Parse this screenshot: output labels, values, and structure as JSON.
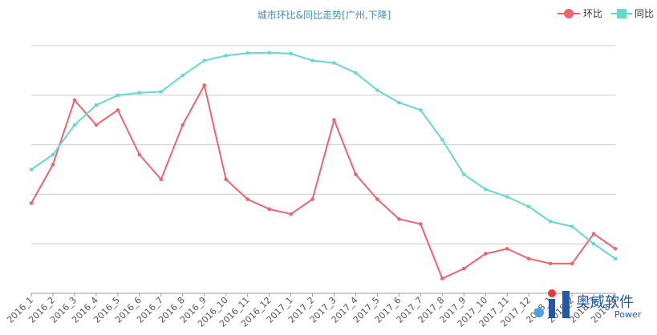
{
  "chart_data": {
    "type": "line",
    "title": "城市环比&同比走势[广州,下降]",
    "xlabel": "",
    "ylabel": "",
    "y_axis_labels_visible": false,
    "grid": "horizontal",
    "legend_position": "top-right",
    "ylim": [
      0,
      5
    ],
    "categories": [
      "2016_1",
      "2016_2",
      "2016_3",
      "2016_4",
      "2016_5",
      "2016_6",
      "2016_7",
      "2016_8",
      "2016_9",
      "2016_10",
      "2016_11",
      "2016_12",
      "2017_1",
      "2017_2",
      "2017_3",
      "2017_4",
      "2017_5",
      "2017_6",
      "2017_7",
      "2017_8",
      "2017_9",
      "2017_10",
      "2017_11",
      "2017_12",
      "2018_1",
      "2018_2",
      "2018_3",
      "2018_4"
    ],
    "series": [
      {
        "name": "环比",
        "color": "#f0646e",
        "values": [
          1.82,
          2.6,
          3.9,
          3.4,
          3.7,
          2.8,
          2.3,
          3.4,
          4.2,
          2.3,
          1.9,
          1.7,
          1.6,
          1.9,
          3.5,
          2.4,
          1.9,
          1.5,
          1.4,
          0.3,
          0.5,
          0.8,
          0.9,
          0.7,
          0.6,
          0.6,
          1.2,
          0.9
        ]
      },
      {
        "name": "同比",
        "color": "#66d9cc",
        "values": [
          2.5,
          2.8,
          3.4,
          3.8,
          4.0,
          4.05,
          4.07,
          4.4,
          4.7,
          4.8,
          4.85,
          4.86,
          4.84,
          4.7,
          4.65,
          4.45,
          4.1,
          3.85,
          3.7,
          3.1,
          2.4,
          2.1,
          1.95,
          1.75,
          1.45,
          1.35,
          1.0,
          0.7
        ]
      }
    ]
  },
  "logo": {
    "name_cn": "奥威软件",
    "name_en": "Power"
  }
}
